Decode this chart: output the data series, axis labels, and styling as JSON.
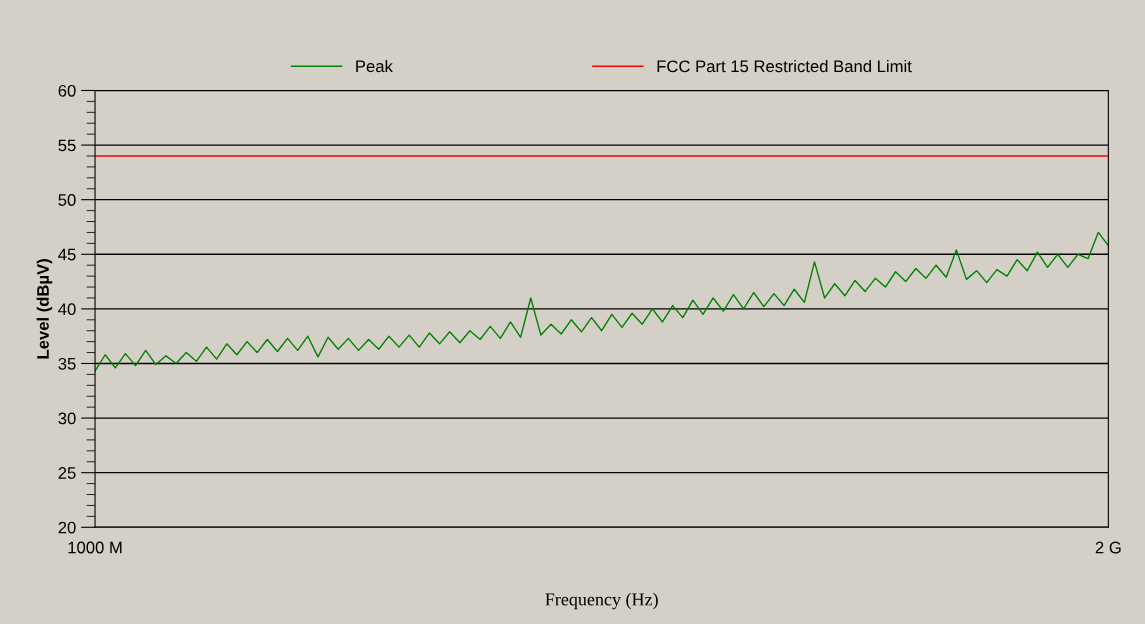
{
  "chart_data": {
    "type": "line",
    "xlabel": "Frequency (Hz)",
    "ylabel": "Level (dBµV)",
    "categories": [
      "1000 M",
      null,
      null,
      null,
      null,
      null,
      null,
      null,
      null,
      null,
      null,
      null,
      null,
      null,
      null,
      null,
      null,
      null,
      null,
      null,
      null,
      null,
      null,
      null,
      null,
      null,
      null,
      null,
      null,
      null,
      null,
      null,
      null,
      null,
      null,
      null,
      null,
      null,
      null,
      null,
      null,
      null,
      null,
      null,
      null,
      null,
      null,
      null,
      null,
      null,
      null,
      null,
      null,
      null,
      null,
      null,
      null,
      null,
      null,
      null,
      null,
      null,
      null,
      null,
      null,
      null,
      null,
      null,
      null,
      null,
      null,
      null,
      null,
      null,
      null,
      null,
      null,
      null,
      null,
      null,
      null,
      null,
      null,
      null,
      null,
      null,
      null,
      null,
      null,
      null,
      null,
      null,
      null,
      null,
      null,
      null,
      null,
      null,
      null,
      null,
      "2 G"
    ],
    "ylim": [
      20,
      60
    ],
    "yticks": [
      20,
      25,
      30,
      35,
      40,
      45,
      50,
      55,
      60
    ],
    "grid": "y",
    "legend": "top",
    "marker": "none",
    "line_style": "solid",
    "series": [
      {
        "name": "Peak",
        "color": "#008000",
        "values": [
          34.3,
          35.8,
          34.6,
          35.9,
          34.8,
          36.2,
          34.9,
          35.7,
          35.0,
          36.0,
          35.2,
          36.5,
          35.4,
          36.8,
          35.8,
          37.0,
          36.0,
          37.2,
          36.1,
          37.3,
          36.2,
          37.5,
          35.6,
          37.4,
          36.3,
          37.3,
          36.2,
          37.2,
          36.3,
          37.5,
          36.5,
          37.6,
          36.5,
          37.8,
          36.8,
          37.9,
          36.9,
          38.0,
          37.2,
          38.4,
          37.3,
          38.8,
          37.4,
          41.0,
          37.6,
          38.6,
          37.7,
          39.0,
          37.9,
          39.2,
          38.0,
          39.5,
          38.3,
          39.6,
          38.6,
          40.0,
          38.8,
          40.3,
          39.2,
          40.8,
          39.5,
          41.0,
          39.8,
          41.3,
          40.0,
          41.5,
          40.2,
          41.4,
          40.3,
          41.8,
          40.6,
          44.3,
          41.0,
          42.3,
          41.2,
          42.6,
          41.6,
          42.8,
          42.0,
          43.4,
          42.5,
          43.7,
          42.8,
          44.0,
          42.9,
          45.4,
          42.7,
          43.5,
          42.4,
          43.6,
          43.0,
          44.5,
          43.5,
          45.2,
          43.8,
          45.0,
          43.8,
          45.0,
          44.6,
          47.0,
          45.8
        ]
      },
      {
        "name": "FCC Part 15 Restricted Band Limit",
        "color": "#ff0000",
        "values": [
          54,
          54,
          54,
          54,
          54,
          54,
          54,
          54,
          54,
          54,
          54,
          54,
          54,
          54,
          54,
          54,
          54,
          54,
          54,
          54,
          54,
          54,
          54,
          54,
          54,
          54,
          54,
          54,
          54,
          54,
          54,
          54,
          54,
          54,
          54,
          54,
          54,
          54,
          54,
          54,
          54,
          54,
          54,
          54,
          54,
          54,
          54,
          54,
          54,
          54,
          54,
          54,
          54,
          54,
          54,
          54,
          54,
          54,
          54,
          54,
          54,
          54,
          54,
          54,
          54,
          54,
          54,
          54,
          54,
          54,
          54,
          54,
          54,
          54,
          54,
          54,
          54,
          54,
          54,
          54,
          54,
          54,
          54,
          54,
          54,
          54,
          54,
          54,
          54,
          54,
          54,
          54,
          54,
          54,
          54,
          54,
          54,
          54,
          54,
          54,
          54
        ]
      }
    ]
  }
}
